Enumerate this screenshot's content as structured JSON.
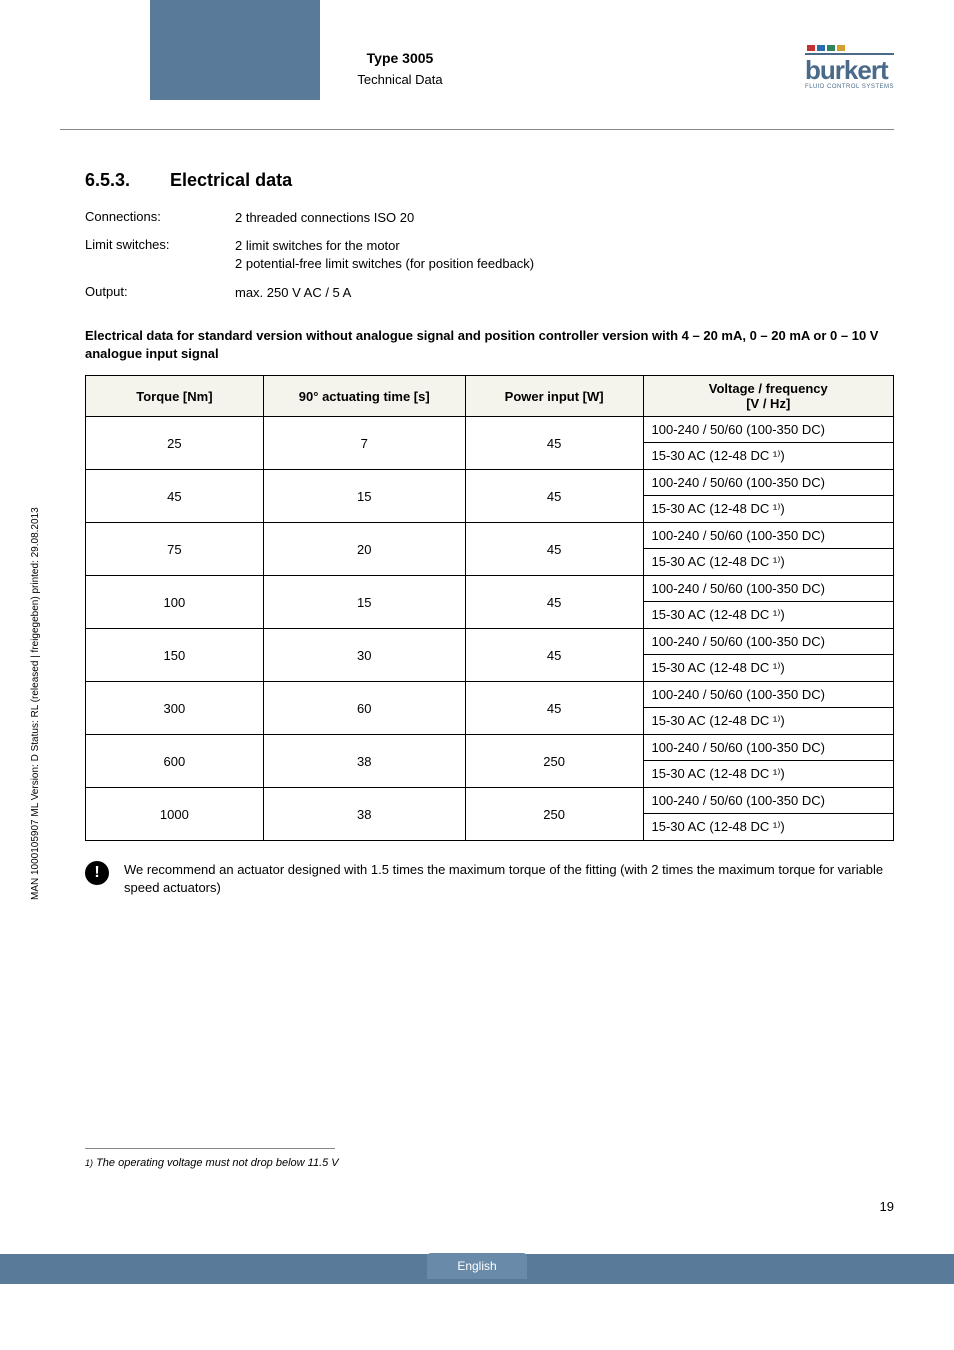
{
  "header": {
    "type_label": "Type 3005",
    "subtitle": "Technical Data",
    "logo_text": "burkert",
    "logo_sub": "FLUID CONTROL SYSTEMS",
    "dot_colors": [
      "#c53030",
      "#2b6cb0",
      "#2f855a",
      "#d69e2e"
    ]
  },
  "section": {
    "number": "6.5.3.",
    "title": "Electrical data"
  },
  "kv": [
    {
      "label": "Connections:",
      "value": "2 threaded connections ISO 20"
    },
    {
      "label": "Limit switches:",
      "value": "2 limit switches for the motor\n2 potential-free limit switches (for position feedback)"
    },
    {
      "label": "Output:",
      "value": "max. 250 V AC / 5 A"
    }
  ],
  "para_title": "Electrical data for standard version without analogue signal and position controller version with 4 – 20 mA, 0 – 20 mA or 0 – 10 V analogue input signal",
  "table": {
    "headers": [
      "Torque [Nm]",
      "90° actuating time [s]",
      "Power input [W]",
      "Voltage / frequency\n[V / Hz]"
    ],
    "col_widths": [
      "22%",
      "25%",
      "22%",
      "31%"
    ],
    "groups": [
      {
        "torque": "25",
        "time": "7",
        "power": "45",
        "volt": [
          "100-240 / 50/60 (100-350 DC)",
          "15-30 AC (12-48 DC ¹⁾)"
        ]
      },
      {
        "torque": "45",
        "time": "15",
        "power": "45",
        "volt": [
          "100-240 / 50/60 (100-350 DC)",
          "15-30 AC (12-48 DC ¹⁾)"
        ]
      },
      {
        "torque": "75",
        "time": "20",
        "power": "45",
        "volt": [
          "100-240 / 50/60 (100-350 DC)",
          "15-30 AC (12-48 DC ¹⁾)"
        ]
      },
      {
        "torque": "100",
        "time": "15",
        "power": "45",
        "volt": [
          "100-240 / 50/60 (100-350 DC)",
          "15-30 AC (12-48 DC ¹⁾)"
        ]
      },
      {
        "torque": "150",
        "time": "30",
        "power": "45",
        "volt": [
          "100-240 / 50/60 (100-350 DC)",
          "15-30 AC (12-48 DC ¹⁾)"
        ]
      },
      {
        "torque": "300",
        "time": "60",
        "power": "45",
        "volt": [
          "100-240 / 50/60 (100-350 DC)",
          "15-30 AC (12-48 DC ¹⁾)"
        ]
      },
      {
        "torque": "600",
        "time": "38",
        "power": "250",
        "volt": [
          "100-240 / 50/60 (100-350 DC)",
          "15-30 AC (12-48 DC ¹⁾)"
        ]
      },
      {
        "torque": "1000",
        "time": "38",
        "power": "250",
        "volt": [
          "100-240 / 50/60 (100-350 DC)",
          "15-30 AC (12-48 DC ¹⁾)"
        ]
      }
    ]
  },
  "note": "We recommend an actuator designed with 1.5 times the maximum torque of the fitting (with 2 times the maximum torque for variable speed actuators)",
  "side_text": "MAN 1000105907 ML Version: D Status: RL (released | freigegeben) printed: 29.08.2013",
  "footnote_num": "1)",
  "footnote": "The operating voltage must not drop below 11.5 V",
  "page_number": "19",
  "footer_lang": "English",
  "colors": {
    "header_bar": "#5a7a9a",
    "th_bg": "#f5f4ec",
    "border": "#000000",
    "hr": "#888888",
    "logo": "#4a6a8a"
  }
}
